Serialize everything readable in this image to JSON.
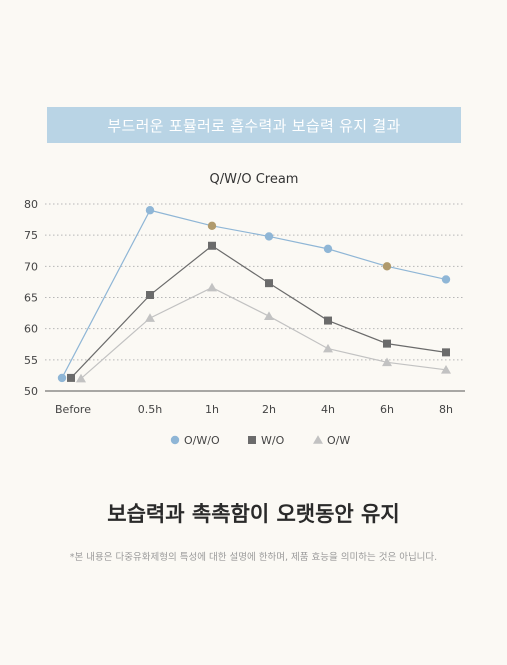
{
  "banner": {
    "text": "부드러운 포뮬러로 흡수력과 보습력 유지 결과"
  },
  "chart_data": {
    "type": "line",
    "title": "Q/W/O Cream",
    "categories": [
      "Before",
      "0.5h",
      "1h",
      "2h",
      "4h",
      "6h",
      "8h"
    ],
    "ylim": [
      50,
      80
    ],
    "yticks": [
      50,
      55,
      60,
      65,
      70,
      75,
      80
    ],
    "grid": "horizontal-dotted",
    "legend_position": "bottom",
    "series": [
      {
        "name": "O/W/O",
        "marker": "circle",
        "color": "#8fb6d6",
        "highlight_color": "#b09a6c",
        "highlight_points": [
          2,
          5
        ],
        "values": [
          52.1,
          79.0,
          76.5,
          74.8,
          72.8,
          70.0,
          67.9
        ]
      },
      {
        "name": "W/O",
        "marker": "square",
        "color": "#6b6b6b",
        "values": [
          52.1,
          65.4,
          73.3,
          67.3,
          61.3,
          57.6,
          56.2
        ]
      },
      {
        "name": "O/W",
        "marker": "triangle",
        "color": "#c2c2c2",
        "values": [
          52.0,
          61.7,
          66.6,
          62.0,
          56.8,
          54.6,
          53.4
        ]
      }
    ]
  },
  "headline": "보습력과 촉촉함이 오랫동안 유지",
  "footnote": "*본 내용은 다중유화제형의 특성에 대한 설명에 한하며, 제품 효능을 의미하는 것은 아닙니다."
}
